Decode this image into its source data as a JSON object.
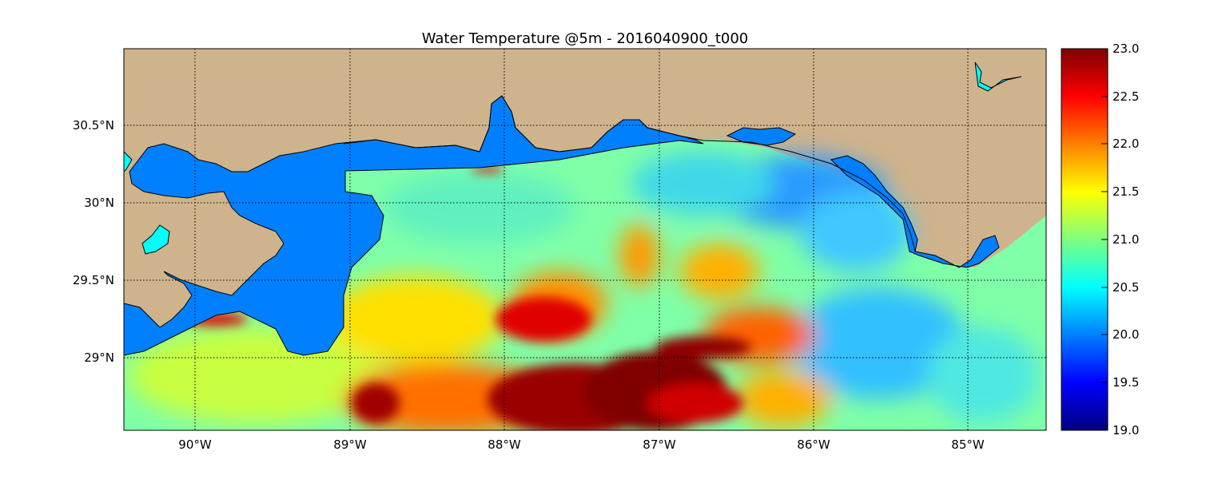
{
  "title": "Water Temperature @5m - 2016040900_t000",
  "map": {
    "lon_range": [
      -90.5,
      -84.5
    ],
    "lat_range": [
      28.55,
      31.0
    ],
    "x_ticks": [
      "90°W",
      "89°W",
      "88°W",
      "87°W",
      "86°W",
      "85°W"
    ],
    "y_ticks": [
      "29°N",
      "29.5°N",
      "30°N",
      "30.5°N"
    ],
    "gridlines": "dotted",
    "land_color": "#cfb38c",
    "inland_water_color": "#0080ff",
    "lake_color": "#00ffff"
  },
  "colorbar": {
    "range": [
      19.0,
      23.0
    ],
    "ticks": [
      "23.0",
      "22.5",
      "22.0",
      "21.5",
      "21.0",
      "20.5",
      "20.0",
      "19.5",
      "19.0"
    ],
    "colormap": "jet"
  }
}
